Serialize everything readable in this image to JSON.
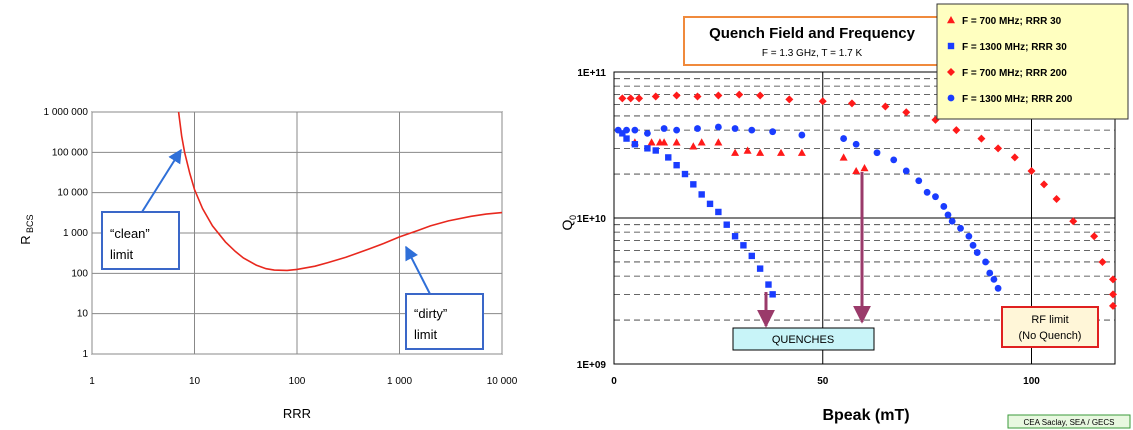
{
  "chart_data": [
    {
      "type": "line",
      "xscale": "log",
      "yscale": "log",
      "xlim": [
        1,
        10000
      ],
      "ylim": [
        1,
        1000000
      ],
      "xlabel": "RRR",
      "ylabel": "R",
      "ylabel_sub": "BCS",
      "x_ticks": [
        1,
        10,
        100,
        1000,
        10000
      ],
      "x_tick_labels": [
        "1",
        "10",
        "100",
        "1 000",
        "10 000"
      ],
      "y_ticks": [
        1,
        10,
        100,
        1000,
        10000,
        100000,
        1000000
      ],
      "y_tick_labels": [
        "1",
        "10",
        "100",
        "1 000",
        "10 000",
        "100 000",
        "1 000 000"
      ],
      "grid": true,
      "line_color": "#e8281e",
      "series": [
        {
          "x": [
            7,
            7.5,
            8,
            9,
            10,
            12,
            15,
            20,
            25,
            30,
            40,
            50,
            60,
            80,
            100,
            150,
            200,
            300,
            500,
            700,
            1000,
            1500,
            2000,
            3000,
            5000,
            7000,
            10000
          ],
          "values": [
            1000000,
            250000,
            100000,
            30000,
            12000,
            4000,
            1500,
            600,
            350,
            240,
            160,
            130,
            120,
            118,
            125,
            150,
            185,
            250,
            400,
            550,
            800,
            1150,
            1500,
            2000,
            2600,
            2950,
            3200
          ]
        }
      ],
      "annotations": [
        {
          "line1": "“clean”",
          "line2": "limit"
        },
        {
          "line1": "“dirty”",
          "line2": "limit"
        }
      ]
    },
    {
      "type": "scatter",
      "title": "Quench Field and Frequency",
      "subtitle": "F = 1.3 GHz,  T = 1.7 K",
      "xlabel": "Bpeak (mT)",
      "ylabel": "Q",
      "ylabel_sub": "0",
      "xscale": "linear",
      "yscale": "log",
      "xlim": [
        0,
        120
      ],
      "ylim": [
        1000000000,
        100000000000
      ],
      "x_ticks": [
        0,
        50,
        100
      ],
      "x_tick_labels": [
        "0",
        "50",
        "100"
      ],
      "y_ticks": [
        1000000000,
        10000000000,
        100000000000
      ],
      "y_tick_labels": [
        "1E+09",
        "1E+10",
        "1E+11"
      ],
      "legend_position": "top-right",
      "series": [
        {
          "name": "F = 700 MHz; RRR  30",
          "marker": "triangle",
          "color": "#ff1a1a",
          "points": [
            [
              5,
              33000000000.0
            ],
            [
              9,
              33000000000.0
            ],
            [
              11,
              33000000000.0
            ],
            [
              12,
              33000000000.0
            ],
            [
              15,
              33000000000.0
            ],
            [
              19,
              31000000000.0
            ],
            [
              21,
              33000000000.0
            ],
            [
              25,
              33000000000.0
            ],
            [
              29,
              28000000000.0
            ],
            [
              32,
              29000000000.0
            ],
            [
              35,
              28000000000.0
            ],
            [
              40,
              28000000000.0
            ],
            [
              45,
              28000000000.0
            ],
            [
              55,
              26000000000.0
            ],
            [
              58,
              21000000000.0
            ],
            [
              60,
              22000000000.0
            ]
          ]
        },
        {
          "name": "F = 1300 MHz; RRR 30",
          "marker": "square",
          "color": "#1a3cff",
          "points": [
            [
              2,
              38000000000.0
            ],
            [
              3,
              35000000000.0
            ],
            [
              5,
              32000000000.0
            ],
            [
              8,
              30000000000.0
            ],
            [
              10,
              29000000000.0
            ],
            [
              13,
              26000000000.0
            ],
            [
              15,
              23000000000.0
            ],
            [
              17,
              20000000000.0
            ],
            [
              19,
              17000000000.0
            ],
            [
              21,
              14500000000.0
            ],
            [
              23,
              12500000000.0
            ],
            [
              25,
              11000000000.0
            ],
            [
              27,
              9000000000.0
            ],
            [
              29,
              7500000000.0
            ],
            [
              31,
              6500000000.0
            ],
            [
              33,
              5500000000.0
            ],
            [
              35,
              4500000000.0
            ],
            [
              37,
              3500000000.0
            ],
            [
              38,
              3000000000.0
            ]
          ]
        },
        {
          "name": "F = 700 MHz; RRR  200",
          "marker": "diamond",
          "color": "#ff1a1a",
          "points": [
            [
              2,
              66000000000.0
            ],
            [
              4,
              66000000000.0
            ],
            [
              6,
              66000000000.0
            ],
            [
              10,
              68000000000.0
            ],
            [
              15,
              69000000000.0
            ],
            [
              20,
              68000000000.0
            ],
            [
              25,
              69000000000.0
            ],
            [
              30,
              70000000000.0
            ],
            [
              35,
              69000000000.0
            ],
            [
              42,
              65000000000.0
            ],
            [
              50,
              63000000000.0
            ],
            [
              57,
              61000000000.0
            ],
            [
              65,
              58000000000.0
            ],
            [
              70,
              53000000000.0
            ],
            [
              77,
              47000000000.0
            ],
            [
              82,
              40000000000.0
            ],
            [
              88,
              35000000000.0
            ],
            [
              92,
              30000000000.0
            ],
            [
              96,
              26000000000.0
            ],
            [
              100,
              21000000000.0
            ],
            [
              103,
              17000000000.0
            ],
            [
              106,
              13500000000.0
            ],
            [
              110,
              9500000000.0
            ],
            [
              115,
              7500000000.0
            ],
            [
              117,
              5000000000.0
            ],
            [
              120,
              3800000000.0
            ],
            [
              122,
              3000000000.0
            ],
            [
              124,
              2500000000.0
            ]
          ]
        },
        {
          "name": "F = 1300 MHz; RRR 200",
          "marker": "circle",
          "color": "#1a3cff",
          "points": [
            [
              1,
              40000000000.0
            ],
            [
              3,
              40000000000.0
            ],
            [
              5,
              40000000000.0
            ],
            [
              8,
              38000000000.0
            ],
            [
              12,
              41000000000.0
            ],
            [
              15,
              40000000000.0
            ],
            [
              20,
              41000000000.0
            ],
            [
              25,
              42000000000.0
            ],
            [
              29,
              41000000000.0
            ],
            [
              33,
              40000000000.0
            ],
            [
              38,
              39000000000.0
            ],
            [
              45,
              37000000000.0
            ],
            [
              55,
              35000000000.0
            ],
            [
              58,
              32000000000.0
            ],
            [
              63,
              28000000000.0
            ],
            [
              67,
              25000000000.0
            ],
            [
              70,
              21000000000.0
            ],
            [
              73,
              18000000000.0
            ],
            [
              75,
              15000000000.0
            ],
            [
              77,
              14000000000.0
            ],
            [
              79,
              12000000000.0
            ],
            [
              80,
              10500000000.0
            ],
            [
              81,
              9500000000.0
            ],
            [
              83,
              8500000000.0
            ],
            [
              85,
              7500000000.0
            ],
            [
              86,
              6500000000.0
            ],
            [
              87,
              5800000000.0
            ],
            [
              89,
              5000000000.0
            ],
            [
              90,
              4200000000.0
            ],
            [
              91,
              3800000000.0
            ],
            [
              92,
              3300000000.0
            ]
          ]
        }
      ],
      "annotations": {
        "quenches": "QUENCHES",
        "rf_limit_line1": "RF limit",
        "rf_limit_line2": "(No Quench)"
      },
      "credit": "CEA Saclay, SEA / GECS"
    }
  ]
}
